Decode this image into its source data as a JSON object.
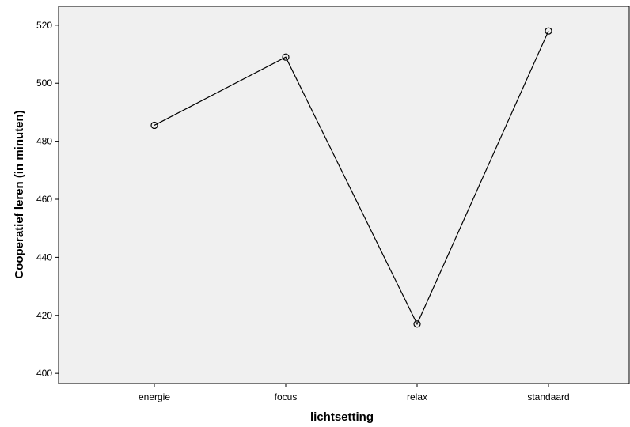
{
  "chart_data": {
    "type": "line",
    "xlabel": "lichtsetting",
    "ylabel": "Cooperatief leren (in minuten)",
    "categories": [
      "energie",
      "focus",
      "relax",
      "standaard"
    ],
    "values": [
      485.5,
      509,
      417,
      518
    ],
    "ylim": [
      396.5,
      526.5
    ],
    "yticks": [
      400,
      420,
      440,
      460,
      480,
      500,
      520
    ],
    "grid": false,
    "marker": "open-circle",
    "plot_background": "#f0f0f0",
    "line_color": "#000000"
  }
}
